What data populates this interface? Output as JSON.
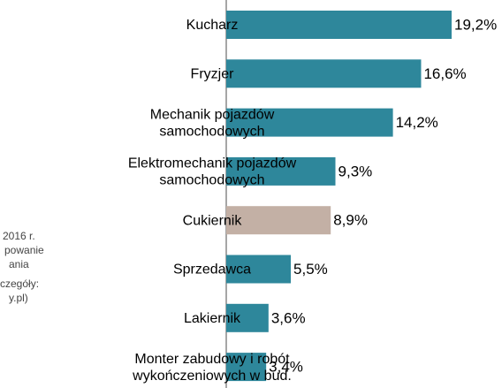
{
  "chart_data": {
    "type": "bar",
    "orientation": "horizontal",
    "categories": [
      [
        "Kucharz"
      ],
      [
        "Fryzjer"
      ],
      [
        "Mechanik pojazdów",
        "samochodowych"
      ],
      [
        "Elektromechanik pojazdów",
        "samochodowych"
      ],
      [
        "Cukiernik"
      ],
      [
        "Sprzedawca"
      ],
      [
        "Lakiernik"
      ],
      [
        "Monter zabudowy i robót",
        "wykończeniowych w bud."
      ]
    ],
    "values": [
      19.2,
      16.6,
      14.2,
      9.3,
      8.9,
      5.5,
      3.6,
      3.4
    ],
    "value_labels": [
      "19,2%",
      "16,6%",
      "14,2%",
      "9,3%",
      "8,9%",
      "5,5%",
      "3,6%",
      "3,4%"
    ],
    "colors": [
      "#2e879b",
      "#2e879b",
      "#2e879b",
      "#2e879b",
      "#c3b0a5",
      "#2e879b",
      "#2e879b",
      "#2e879b"
    ],
    "annotations": [
      "2016 r.",
      "powanie",
      "ania",
      "czegóły:",
      "y.pl)"
    ]
  }
}
